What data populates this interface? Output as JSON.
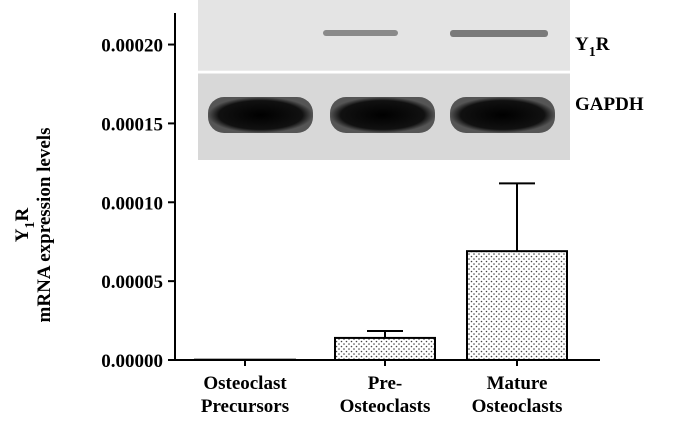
{
  "chart_data": {
    "type": "bar",
    "ylabel": {
      "gene": "Y",
      "subscript": "1",
      "suffix": "R",
      "line2": "mRNA expression levels"
    },
    "categories": [
      [
        "Osteoclast",
        "Precursors"
      ],
      [
        "Pre-",
        "Osteoclasts"
      ],
      [
        "Mature",
        "Osteoclasts"
      ]
    ],
    "values": [
      2e-07,
      1.4e-05,
      6.9e-05
    ],
    "errors": [
      0,
      4.4e-06,
      4.3e-05
    ],
    "color": "#ffffff",
    "ylim": [
      0,
      0.00022
    ],
    "yticks": [
      {
        "value": 0,
        "label": "0.00000"
      },
      {
        "value": 5e-05,
        "label": "0.00005"
      },
      {
        "value": 0.0001,
        "label": "0.00010"
      },
      {
        "value": 0.00015,
        "label": "0.00015"
      },
      {
        "value": 0.0002,
        "label": "0.00020"
      }
    ],
    "grid": false,
    "inset_labels": {
      "band1": {
        "gene": "Y",
        "subscript": "1",
        "suffix": "R"
      },
      "band2": "GAPDH"
    }
  }
}
